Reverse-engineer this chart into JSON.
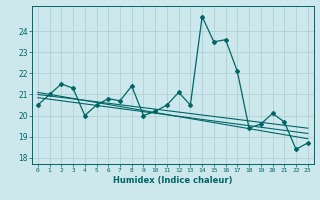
{
  "title": "",
  "xlabel": "Humidex (Indice chaleur)",
  "ylabel": "",
  "background_color": "#cce8ec",
  "grid_color": "#aacccc",
  "line_color": "#006666",
  "x_data": [
    0,
    1,
    2,
    3,
    4,
    5,
    6,
    7,
    8,
    9,
    10,
    11,
    12,
    13,
    14,
    15,
    16,
    17,
    18,
    19,
    20,
    21,
    22,
    23
  ],
  "y_main": [
    20.5,
    21.0,
    21.5,
    21.3,
    20.0,
    20.5,
    20.8,
    20.7,
    21.4,
    20.0,
    20.2,
    20.5,
    21.1,
    20.5,
    24.7,
    23.5,
    23.6,
    22.1,
    19.4,
    19.6,
    20.1,
    19.7,
    18.4,
    18.7
  ],
  "trend1_start": 21.1,
  "trend1_end": 18.9,
  "trend2_start": 21.0,
  "trend2_end": 19.4,
  "trend3_start": 20.85,
  "trend3_end": 19.15,
  "ylim": [
    17.7,
    25.2
  ],
  "xlim": [
    -0.5,
    23.5
  ],
  "yticks": [
    18,
    19,
    20,
    21,
    22,
    23,
    24
  ],
  "xticks": [
    0,
    1,
    2,
    3,
    4,
    5,
    6,
    7,
    8,
    9,
    10,
    11,
    12,
    13,
    14,
    15,
    16,
    17,
    18,
    19,
    20,
    21,
    22,
    23
  ],
  "xtick_labels": [
    "0",
    "1",
    "2",
    "3",
    "4",
    "5",
    "6",
    "7",
    "8",
    "9",
    "10",
    "11",
    "12",
    "13",
    "14",
    "15",
    "16",
    "17",
    "18",
    "19",
    "20",
    "21",
    "22",
    "23"
  ]
}
